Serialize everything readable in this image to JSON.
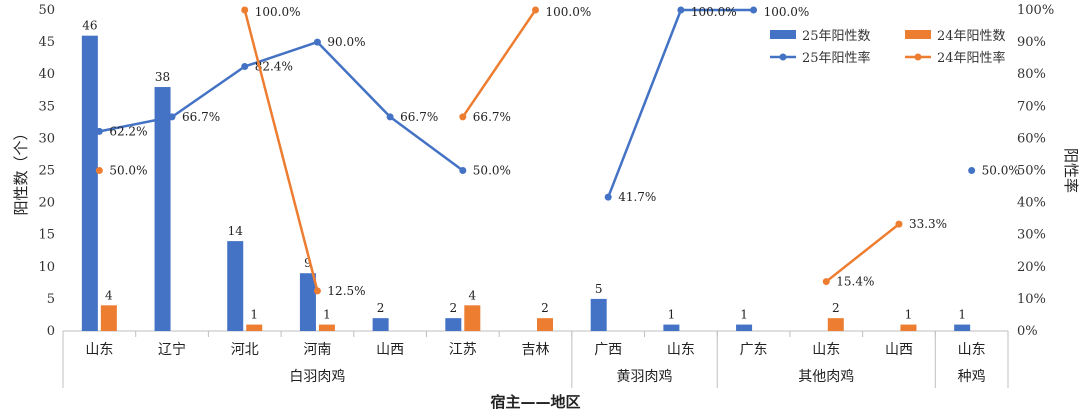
{
  "chart_data": {
    "type": "bar",
    "xlabel": "宿主——地区",
    "ylabel": "阳性数（个）",
    "y2label": "阳性率",
    "ylim": [
      0,
      50
    ],
    "y2lim": [
      0,
      1
    ],
    "yticks": [
      "0",
      "5",
      "10",
      "15",
      "20",
      "25",
      "30",
      "35",
      "40",
      "45",
      "50"
    ],
    "y2ticks": [
      "0%",
      "10%",
      "20%",
      "30%",
      "40%",
      "50%",
      "60%",
      "70%",
      "80%",
      "90%",
      "100%"
    ],
    "categories": [
      "山东",
      "辽宁",
      "河北",
      "河南",
      "山西",
      "江苏",
      "吉林",
      "广西",
      "山东",
      "广东",
      "山东",
      "山西",
      "山东"
    ],
    "groups": [
      {
        "name": "白羽肉鸡",
        "count": 7
      },
      {
        "name": "黄羽肉鸡",
        "count": 2
      },
      {
        "name": "其他肉鸡",
        "count": 3
      },
      {
        "name": "山东种鸡",
        "count": 1
      }
    ],
    "legend": {
      "position": "top-right"
    },
    "series": [
      {
        "name": "25年阳性数",
        "kind": "bar",
        "axis": "left",
        "color": "#4472C4",
        "values": [
          46,
          38,
          14,
          9,
          2,
          2,
          null,
          5,
          1,
          1,
          null,
          null,
          1
        ],
        "labels": [
          "46",
          "38",
          "14",
          "9",
          "2",
          "2",
          "",
          "5",
          "1",
          "1",
          "",
          "",
          "1"
        ]
      },
      {
        "name": "24年阳性数",
        "kind": "bar",
        "axis": "left",
        "color": "#ED7D31",
        "values": [
          4,
          null,
          1,
          1,
          null,
          4,
          2,
          null,
          null,
          null,
          2,
          1,
          null
        ],
        "labels": [
          "4",
          "",
          "1",
          "1",
          "",
          "4",
          "2",
          "",
          "",
          "",
          "2",
          "1",
          ""
        ]
      },
      {
        "name": "25年阳性率",
        "kind": "line",
        "axis": "right",
        "color": "#4472C4",
        "values": [
          0.622,
          0.667,
          0.824,
          0.9,
          0.667,
          0.5,
          null,
          0.417,
          1.0,
          1.0,
          null,
          null,
          0.5
        ],
        "labels": [
          "62.2%",
          "66.7%",
          "82.4%",
          "90.0%",
          "66.7%",
          "50.0%",
          "",
          "41.7%",
          "100.0%",
          "100.0%",
          "",
          "",
          "50.0%"
        ],
        "segments": [
          [
            0,
            5
          ],
          [
            7,
            9
          ],
          [
            12,
            12
          ]
        ]
      },
      {
        "name": "24年阳性率",
        "kind": "line",
        "axis": "right",
        "color": "#ED7D31",
        "values": [
          0.5,
          null,
          1.0,
          0.125,
          null,
          0.667,
          1.0,
          null,
          null,
          null,
          0.154,
          0.333,
          null
        ],
        "labels": [
          "50.0%",
          "",
          "100.0%",
          "12.5%",
          "",
          "66.7%",
          "100.0%",
          "",
          "",
          "",
          "15.4%",
          "33.3%",
          ""
        ],
        "segments": [
          [
            0,
            0
          ],
          [
            2,
            3
          ],
          [
            5,
            6
          ],
          [
            10,
            11
          ]
        ]
      }
    ]
  }
}
